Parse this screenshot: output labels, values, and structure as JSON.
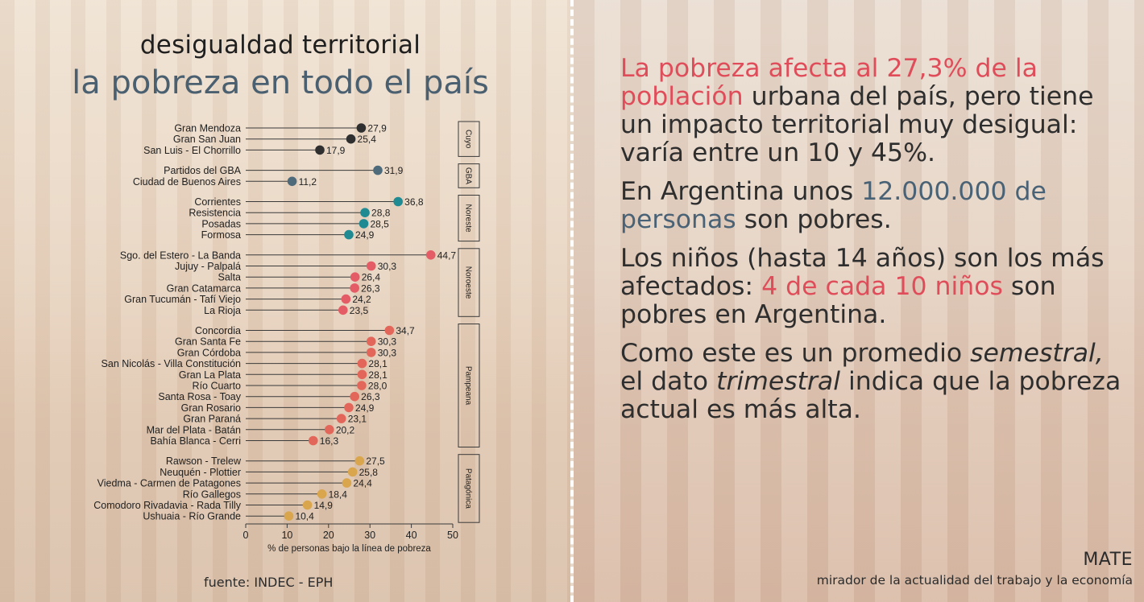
{
  "title": "desigualdad territorial",
  "subtitle": "la pobreza en todo el país",
  "source": "fuente: INDEC - EPH",
  "colors": {
    "Cuyo": "#2f2f2f",
    "GBA": "#4e6b7c",
    "Noreste": "#1f8a92",
    "Noroeste": "#e45c65",
    "Pampeana": "#e3665a",
    "Patagónica": "#d9a64e",
    "red_text": "#e04d5a",
    "blue_text": "#4a6275"
  },
  "chart_data": {
    "type": "lollipop",
    "xlabel": "% de personas bajo la línea de pobreza",
    "xlim": [
      0,
      50
    ],
    "xticks": [
      "0",
      "10",
      "20",
      "30",
      "40",
      "50"
    ],
    "groups": [
      {
        "name": "Cuyo",
        "items": [
          {
            "label": "Gran Mendoza",
            "value": 27.9,
            "value_label": "27,9"
          },
          {
            "label": "Gran San Juan",
            "value": 25.4,
            "value_label": "25,4"
          },
          {
            "label": "San Luis - El Chorrillo",
            "value": 17.9,
            "value_label": "17,9"
          }
        ]
      },
      {
        "name": "GBA",
        "items": [
          {
            "label": "Partidos del GBA",
            "value": 31.9,
            "value_label": "31,9"
          },
          {
            "label": "Ciudad de Buenos Aires",
            "value": 11.2,
            "value_label": "11,2"
          }
        ]
      },
      {
        "name": "Noreste",
        "items": [
          {
            "label": "Corrientes",
            "value": 36.8,
            "value_label": "36,8"
          },
          {
            "label": "Resistencia",
            "value": 28.8,
            "value_label": "28,8"
          },
          {
            "label": "Posadas",
            "value": 28.5,
            "value_label": "28,5"
          },
          {
            "label": "Formosa",
            "value": 24.9,
            "value_label": "24,9"
          }
        ]
      },
      {
        "name": "Noroeste",
        "items": [
          {
            "label": "Sgo. del Estero - La Banda",
            "value": 44.7,
            "value_label": "44,7"
          },
          {
            "label": "Jujuy - Palpalá",
            "value": 30.3,
            "value_label": "30,3"
          },
          {
            "label": "Salta",
            "value": 26.4,
            "value_label": "26,4"
          },
          {
            "label": "Gran Catamarca",
            "value": 26.3,
            "value_label": "26,3"
          },
          {
            "label": "Gran Tucumán - Tafí Viejo",
            "value": 24.2,
            "value_label": "24,2"
          },
          {
            "label": "La Rioja",
            "value": 23.5,
            "value_label": "23,5"
          }
        ]
      },
      {
        "name": "Pampeana",
        "items": [
          {
            "label": "Concordia",
            "value": 34.7,
            "value_label": "34,7"
          },
          {
            "label": "Gran Santa Fe",
            "value": 30.3,
            "value_label": "30,3"
          },
          {
            "label": "Gran Córdoba",
            "value": 30.3,
            "value_label": "30,3"
          },
          {
            "label": "San Nicolás - Villa Constitución",
            "value": 28.1,
            "value_label": "28,1"
          },
          {
            "label": "Gran La Plata",
            "value": 28.1,
            "value_label": "28,1"
          },
          {
            "label": "Río Cuarto",
            "value": 28.0,
            "value_label": "28,0"
          },
          {
            "label": "Santa Rosa - Toay",
            "value": 26.3,
            "value_label": "26,3"
          },
          {
            "label": "Gran Rosario",
            "value": 24.9,
            "value_label": "24,9"
          },
          {
            "label": "Gran Paraná",
            "value": 23.1,
            "value_label": "23,1"
          },
          {
            "label": "Mar del Plata - Batán",
            "value": 20.2,
            "value_label": "20,2"
          },
          {
            "label": "Bahía Blanca - Cerri",
            "value": 16.3,
            "value_label": "16,3"
          }
        ]
      },
      {
        "name": "Patagónica",
        "items": [
          {
            "label": "Rawson - Trelew",
            "value": 27.5,
            "value_label": "27,5"
          },
          {
            "label": "Neuquén - Plottier",
            "value": 25.8,
            "value_label": "25,8"
          },
          {
            "label": "Viedma - Carmen de Patagones",
            "value": 24.4,
            "value_label": "24,4"
          },
          {
            "label": "Río Gallegos",
            "value": 18.4,
            "value_label": "18,4"
          },
          {
            "label": "Comodoro Rivadavia - Rada Tilly",
            "value": 14.9,
            "value_label": "14,9"
          },
          {
            "label": "Ushuaia - Río Grande",
            "value": 10.4,
            "value_label": "10,4"
          }
        ]
      }
    ]
  },
  "text_panel": {
    "p1_red": "La pobreza afecta al 27,3% de la población",
    "p1_rest": " urbana del país, pero tiene un impacto territorial muy desigual: varía entre un 10 y 45%.",
    "p2_start": "En Argentina unos ",
    "p2_blue": "12.000.000 de personas",
    "p2_end": " son pobres.",
    "p3_start": "Los niños (hasta 14 años) son los más afectados: ",
    "p3_red": "4 de cada 10 niños",
    "p3_end": " son pobres en Argentina.",
    "p4_a": "Como este es un promedio ",
    "p4_italic1": "semestral,",
    "p4_b": " el dato ",
    "p4_italic2": "trimestral",
    "p4_c": " indica que la pobreza actual es más alta."
  },
  "brand": "MATE",
  "tagline": "mirador de la actualidad del trabajo y la economía"
}
